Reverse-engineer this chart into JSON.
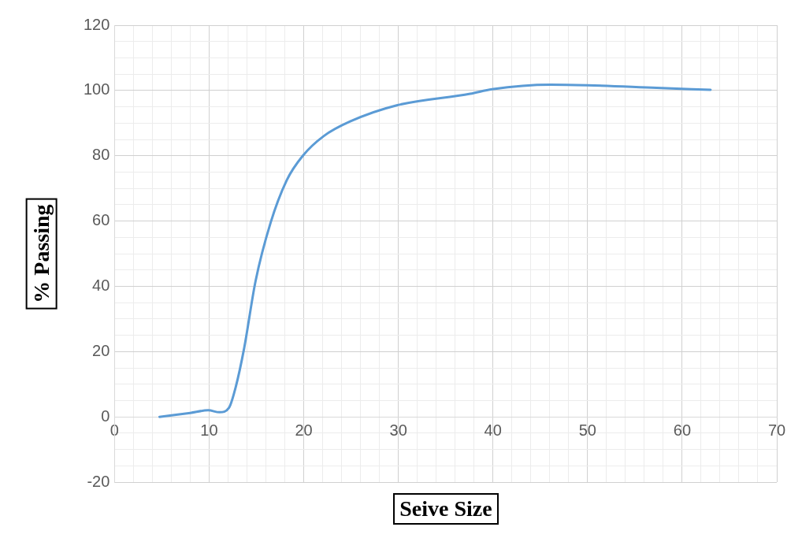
{
  "chart_data": {
    "type": "line",
    "xlabel": "Seive Size",
    "ylabel": "% Passing",
    "x": [
      4.75,
      8,
      9.9,
      11.1,
      12.1,
      12.8,
      13.7,
      14.9,
      16.5,
      18.2,
      19.9,
      22.1,
      24.9,
      29.9,
      37.6,
      39.9,
      46.1,
      50,
      57.3,
      63
    ],
    "series": [
      {
        "color": "#5b9bd5",
        "values": [
          0,
          1.2,
          2,
          1.4,
          2.8,
          9,
          21,
          41.5,
          59.5,
          72.5,
          80,
          86,
          90.5,
          95.5,
          99,
          100.4,
          101.8,
          101.6,
          100.8,
          100.2
        ]
      }
    ],
    "xlim": [
      0,
      70
    ],
    "ylim": [
      -20,
      120
    ],
    "xticks": [
      0,
      {
        "value": 2,
        "label": null
      },
      {
        "value": 4,
        "label": null
      },
      {
        "value": 6,
        "label": null
      },
      {
        "value": 8,
        "label": null
      },
      10,
      {
        "value": 12,
        "label": null
      },
      {
        "value": 14,
        "label": null
      },
      {
        "value": 16,
        "label": null
      },
      {
        "value": 18,
        "label": null
      },
      20,
      {
        "value": 22,
        "label": null
      },
      {
        "value": 24,
        "label": null
      },
      {
        "value": 26,
        "label": null
      },
      {
        "value": 28,
        "label": null
      },
      30,
      {
        "value": 32,
        "label": null
      },
      {
        "value": 34,
        "label": null
      },
      {
        "value": 36,
        "label": null
      },
      {
        "value": 38,
        "label": null
      },
      40,
      {
        "value": 42,
        "label": null
      },
      {
        "value": 44,
        "label": null
      },
      {
        "value": 46,
        "label": null
      },
      {
        "value": 48,
        "label": null
      },
      50,
      {
        "value": 52,
        "label": null
      },
      {
        "value": 54,
        "label": null
      },
      {
        "value": 56,
        "label": null
      },
      {
        "value": 58,
        "label": null
      },
      60,
      {
        "value": 62,
        "label": null
      },
      {
        "value": 64,
        "label": null
      },
      {
        "value": 66,
        "label": null
      },
      {
        "value": 68,
        "label": null
      },
      70
    ],
    "yticks": [
      -20,
      {
        "value": -15,
        "label": null
      },
      {
        "value": -10,
        "label": null
      },
      {
        "value": -5,
        "label": null
      },
      0,
      {
        "value": 5,
        "label": null
      },
      {
        "value": 10,
        "label": null
      },
      {
        "value": 15,
        "label": null
      },
      20,
      {
        "value": 25,
        "label": null
      },
      {
        "value": 30,
        "label": null
      },
      {
        "value": 35,
        "label": null
      },
      40,
      {
        "value": 45,
        "label": null
      },
      {
        "value": 50,
        "label": null
      },
      {
        "value": 55,
        "label": null
      },
      60,
      {
        "value": 65,
        "label": null
      },
      {
        "value": 70,
        "label": null
      },
      {
        "value": 75,
        "label": null
      },
      80,
      {
        "value": 85,
        "label": null
      },
      {
        "value": 90,
        "label": null
      },
      {
        "value": 95,
        "label": null
      },
      100,
      {
        "value": 105,
        "label": null
      },
      {
        "value": 110,
        "label": null
      },
      {
        "value": 115,
        "label": null
      },
      120
    ],
    "grid": true,
    "legend": false,
    "marker": "none",
    "line_style": "solid"
  }
}
